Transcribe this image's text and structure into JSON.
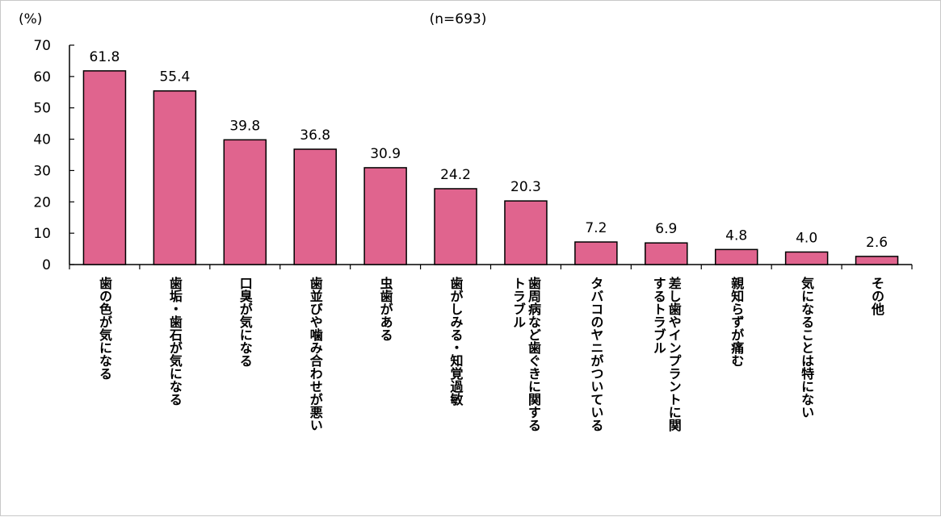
{
  "chart_data": {
    "type": "bar",
    "unit_label": "(%)",
    "sample_label": "(n=693)",
    "ylim": [
      0,
      70
    ],
    "yticks": [
      0,
      10,
      20,
      30,
      40,
      50,
      60,
      70
    ],
    "bar_color": "#e0648e",
    "grid": false,
    "categories": [
      [
        "歯の色が気になる"
      ],
      [
        "歯垢・歯石が気になる"
      ],
      [
        "口臭が気になる"
      ],
      [
        "歯並びや噛み合わせが悪い"
      ],
      [
        "虫歯がある"
      ],
      [
        "歯がしみる・知覚過敏"
      ],
      [
        "歯周病など歯ぐきに関する",
        "トラブル"
      ],
      [
        "タバコのヤニがついている"
      ],
      [
        "差し歯やインプラントに関",
        "するトラブル"
      ],
      [
        "親知らずが痛む"
      ],
      [
        "気になることは特にない"
      ],
      [
        "その他"
      ]
    ],
    "values": [
      61.8,
      55.4,
      39.8,
      36.8,
      30.9,
      24.2,
      20.3,
      7.2,
      6.9,
      4.8,
      4.0,
      2.6
    ],
    "value_labels": [
      "61.8",
      "55.4",
      "39.8",
      "36.8",
      "30.9",
      "24.2",
      "20.3",
      "7.2",
      "6.9",
      "4.8",
      "4.0",
      "2.6"
    ]
  }
}
